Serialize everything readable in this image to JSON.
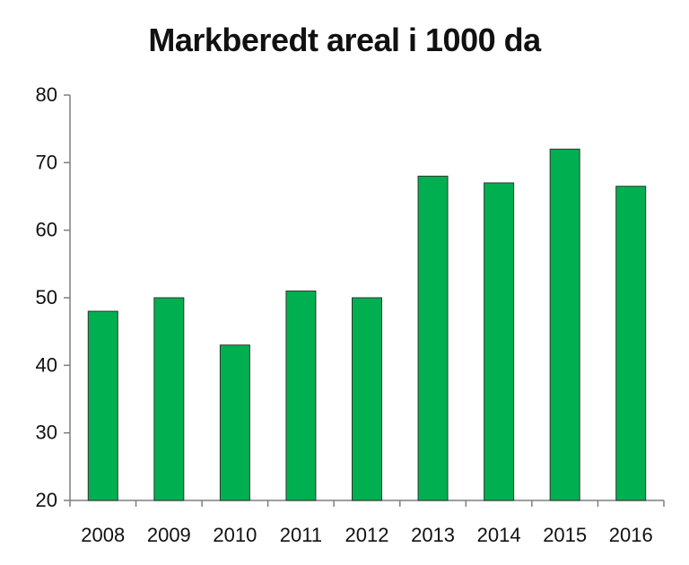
{
  "chart_data": {
    "type": "bar",
    "title": "Markberedt areal i 1000 da",
    "xlabel": "",
    "ylabel": "",
    "categories": [
      "2008",
      "2009",
      "2010",
      "2011",
      "2012",
      "2013",
      "2014",
      "2015",
      "2016"
    ],
    "values": [
      48,
      50,
      43,
      51,
      50,
      68,
      67,
      72,
      66.5
    ],
    "ylim": [
      20,
      80
    ],
    "yticks": [
      20,
      30,
      40,
      50,
      60,
      70,
      80
    ],
    "grid": false,
    "legend": "none",
    "bar_color": "#00B050",
    "bar_edge_color": "#333333"
  }
}
